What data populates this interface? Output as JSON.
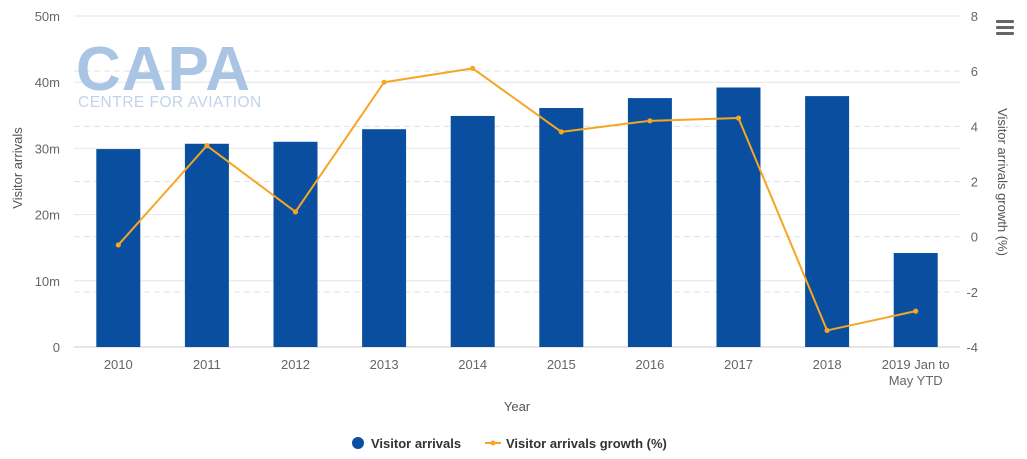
{
  "chart_data": {
    "type": "bar",
    "categories": [
      "2010",
      "2011",
      "2012",
      "2013",
      "2014",
      "2015",
      "2016",
      "2017",
      "2018",
      "2019 Jan to May YTD"
    ],
    "series": [
      {
        "name": "Visitor arrivals",
        "type": "bar",
        "axis": "left",
        "values": [
          29.9,
          30.7,
          31.0,
          32.9,
          34.9,
          36.1,
          37.6,
          39.2,
          37.9,
          14.2
        ]
      },
      {
        "name": "Visitor arrivals growth (%)",
        "type": "line",
        "axis": "right",
        "values": [
          -0.3,
          3.3,
          0.9,
          5.6,
          6.1,
          3.8,
          4.2,
          4.3,
          -3.4,
          -2.7
        ]
      }
    ],
    "xlabel": "Year",
    "ylabel": "Visitor arrivals",
    "y2label": "Visitor arrivals growth (%)",
    "ylim": [
      0,
      50
    ],
    "y2lim": [
      -4,
      8
    ],
    "yticks": [
      "0",
      "10m",
      "20m",
      "30m",
      "40m",
      "50m"
    ],
    "y2ticks": [
      "-4",
      "-2",
      "0",
      "2",
      "4",
      "6",
      "8"
    ],
    "xticks": [
      [
        "2010"
      ],
      [
        "2011"
      ],
      [
        "2012"
      ],
      [
        "2013"
      ],
      [
        "2014"
      ],
      [
        "2015"
      ],
      [
        "2016"
      ],
      [
        "2017"
      ],
      [
        "2018"
      ],
      [
        "2019 Jan to",
        "May YTD"
      ]
    ],
    "grid": true,
    "legend_position": "bottom-center",
    "colors": {
      "bar": "#0a4f9f",
      "line": "#f5a623"
    }
  },
  "watermark": {
    "big": "CAPA",
    "small": "CENTRE FOR AVIATION"
  },
  "menu_icon": "hamburger-menu-icon"
}
